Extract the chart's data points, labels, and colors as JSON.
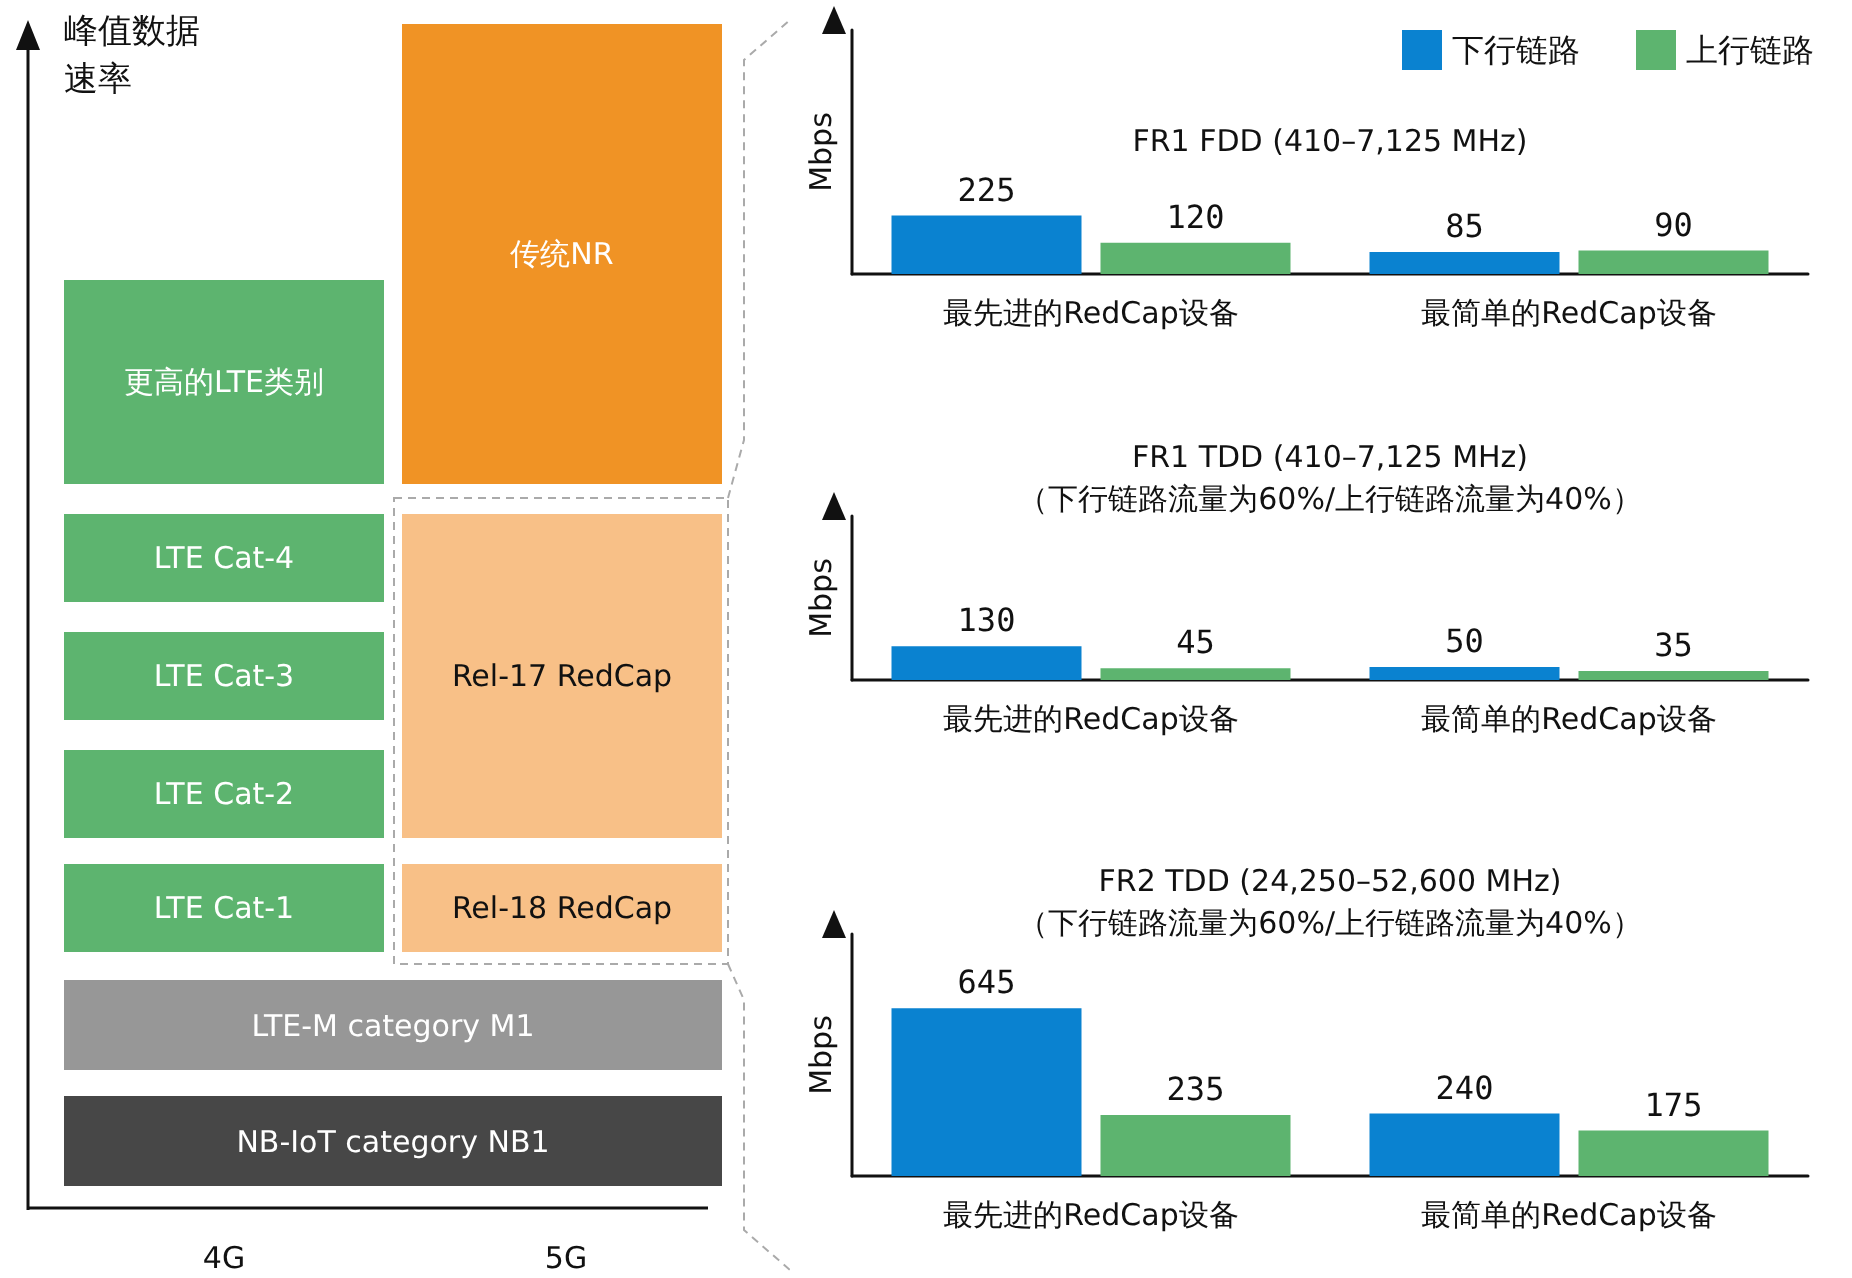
{
  "chart_data": [
    {
      "type": "other",
      "ylabel": "峰值数据速率",
      "categories": [
        "4G",
        "5G"
      ],
      "annotations": [
        "更高的LTE类别",
        "传统NR",
        "LTE Cat-4",
        "Rel-17 RedCap",
        "LTE Cat-3",
        "LTE Cat-2",
        "LTE Cat-1",
        "Rel-18 RedCap",
        "LTE-M category M1",
        "NB-IoT category NB1"
      ]
    },
    {
      "type": "bar",
      "title": "FR1 FDD (410–7,125 MHz)",
      "ylabel": "Mbps",
      "categories": [
        "最先进的RedCap设备",
        "最简单的RedCap设备"
      ],
      "series": [
        {
          "name": "下行链路",
          "color": "#0a82d0",
          "values": [
            225,
            85
          ]
        },
        {
          "name": "上行链路",
          "color": "#5db46f",
          "values": [
            120,
            90
          ]
        }
      ],
      "data_labels": true,
      "legend": "top right",
      "tick_labels": "x"
    },
    {
      "type": "bar",
      "title": "FR1 TDD (410–7,125 MHz)",
      "subtitle": "（下行链路流量为60%/上行链路流量为40%）",
      "ylabel": "Mbps",
      "categories": [
        "最先进的RedCap设备",
        "最简单的RedCap设备"
      ],
      "series": [
        {
          "color": "#0a82d0",
          "values": [
            130,
            50
          ]
        },
        {
          "color": "#5db46f",
          "values": [
            45,
            35
          ]
        }
      ],
      "data_labels": true,
      "tick_labels": "x"
    },
    {
      "type": "bar",
      "title": "FR2 TDD (24,250–52,600 MHz)",
      "subtitle": "（下行链路流量为60%/上行链路流量为40%）",
      "ylabel": "Mbps",
      "categories": [
        "最先进的RedCap设备",
        "最简单的RedCap设备"
      ],
      "series": [
        {
          "color": "#0a82d0",
          "values": [
            645,
            240
          ]
        },
        {
          "color": "#5db46f",
          "values": [
            235,
            175
          ]
        }
      ],
      "data_labels": true,
      "tick_labels": "x"
    }
  ]
}
